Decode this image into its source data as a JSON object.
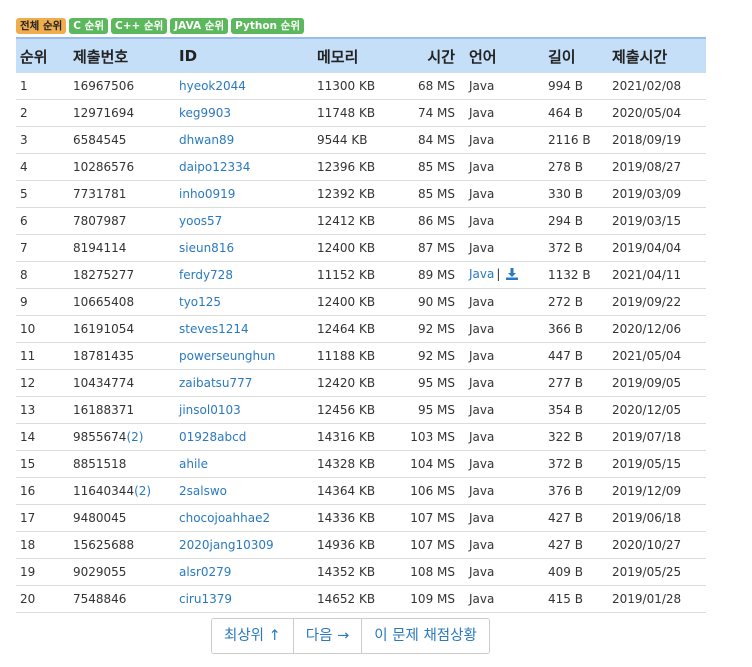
{
  "tabs": [
    "전체 순위",
    "C 순위",
    "C++ 순위",
    "JAVA 순위",
    "Python 순위"
  ],
  "columns": [
    "순위",
    "제출번호",
    "ID",
    "메모리",
    "시간",
    "언어",
    "길이",
    "제출시간"
  ],
  "rows": [
    {
      "rank": "1",
      "submission": "16967506",
      "sub_extra": "",
      "user": "hyeok2044",
      "memory": "11300 KB",
      "time": "68 MS",
      "lang": "Java",
      "length": "994 B",
      "date": "2021/02/08"
    },
    {
      "rank": "2",
      "submission": "12971694",
      "sub_extra": "",
      "user": "keg9903",
      "memory": "11748 KB",
      "time": "74 MS",
      "lang": "Java",
      "length": "464 B",
      "date": "2020/05/04"
    },
    {
      "rank": "3",
      "submission": "6584545",
      "sub_extra": "",
      "user": "dhwan89",
      "memory": "9544 KB",
      "time": "84 MS",
      "lang": "Java",
      "length": "2116 B",
      "date": "2018/09/19"
    },
    {
      "rank": "4",
      "submission": "10286576",
      "sub_extra": "",
      "user": "daipo12334",
      "memory": "12396 KB",
      "time": "85 MS",
      "lang": "Java",
      "length": "278 B",
      "date": "2019/08/27"
    },
    {
      "rank": "5",
      "submission": "7731781",
      "sub_extra": "",
      "user": "inho0919",
      "memory": "12392 KB",
      "time": "85 MS",
      "lang": "Java",
      "length": "330 B",
      "date": "2019/03/09"
    },
    {
      "rank": "6",
      "submission": "7807987",
      "sub_extra": "",
      "user": "yoos57",
      "memory": "12412 KB",
      "time": "86 MS",
      "lang": "Java",
      "length": "294 B",
      "date": "2019/03/15"
    },
    {
      "rank": "7",
      "submission": "8194114",
      "sub_extra": "",
      "user": "sieun816",
      "memory": "12400 KB",
      "time": "87 MS",
      "lang": "Java",
      "length": "372 B",
      "date": "2019/04/04"
    },
    {
      "rank": "8",
      "submission": "18275277",
      "sub_extra": "",
      "user": "ferdy728",
      "memory": "11152 KB",
      "time": "89 MS",
      "lang": "Java",
      "length": "1132 B",
      "date": "2021/04/11",
      "link": true
    },
    {
      "rank": "9",
      "submission": "10665408",
      "sub_extra": "",
      "user": "tyo125",
      "memory": "12400 KB",
      "time": "90 MS",
      "lang": "Java",
      "length": "272 B",
      "date": "2019/09/22"
    },
    {
      "rank": "10",
      "submission": "16191054",
      "sub_extra": "",
      "user": "steves1214",
      "memory": "12464 KB",
      "time": "92 MS",
      "lang": "Java",
      "length": "366 B",
      "date": "2020/12/06"
    },
    {
      "rank": "11",
      "submission": "18781435",
      "sub_extra": "",
      "user": "powerseunghun",
      "memory": "11188 KB",
      "time": "92 MS",
      "lang": "Java",
      "length": "447 B",
      "date": "2021/05/04"
    },
    {
      "rank": "12",
      "submission": "10434774",
      "sub_extra": "",
      "user": "zaibatsu777",
      "memory": "12420 KB",
      "time": "95 MS",
      "lang": "Java",
      "length": "277 B",
      "date": "2019/09/05"
    },
    {
      "rank": "13",
      "submission": "16188371",
      "sub_extra": "",
      "user": "jinsol0103",
      "memory": "12456 KB",
      "time": "95 MS",
      "lang": "Java",
      "length": "354 B",
      "date": "2020/12/05"
    },
    {
      "rank": "14",
      "submission": "9855674",
      "sub_extra": "(2)",
      "user": "01928abcd",
      "memory": "14316 KB",
      "time": "103 MS",
      "lang": "Java",
      "length": "322 B",
      "date": "2019/07/18"
    },
    {
      "rank": "15",
      "submission": "8851518",
      "sub_extra": "",
      "user": "ahile",
      "memory": "14328 KB",
      "time": "104 MS",
      "lang": "Java",
      "length": "372 B",
      "date": "2019/05/15"
    },
    {
      "rank": "16",
      "submission": "11640344",
      "sub_extra": "(2)",
      "user": "2salswo",
      "memory": "14364 KB",
      "time": "106 MS",
      "lang": "Java",
      "length": "376 B",
      "date": "2019/12/09"
    },
    {
      "rank": "17",
      "submission": "9480045",
      "sub_extra": "",
      "user": "chocojoahhae2",
      "memory": "14336 KB",
      "time": "107 MS",
      "lang": "Java",
      "length": "427 B",
      "date": "2019/06/18"
    },
    {
      "rank": "18",
      "submission": "15625688",
      "sub_extra": "",
      "user": "2020jang10309",
      "memory": "14936 KB",
      "time": "107 MS",
      "lang": "Java",
      "length": "427 B",
      "date": "2020/10/27"
    },
    {
      "rank": "19",
      "submission": "9029055",
      "sub_extra": "",
      "user": "alsr0279",
      "memory": "14352 KB",
      "time": "108 MS",
      "lang": "Java",
      "length": "409 B",
      "date": "2019/05/25"
    },
    {
      "rank": "20",
      "submission": "7548846",
      "sub_extra": "",
      "user": "ciru1379",
      "memory": "14652 KB",
      "time": "109 MS",
      "lang": "Java",
      "length": "415 B",
      "date": "2019/01/28"
    }
  ],
  "lang_separator": "|",
  "pager": {
    "top": "최상위 ↑",
    "next": "다음 →",
    "status": "이 문제 채점상황"
  },
  "colors": {
    "header_bg": "#c5dff8",
    "link": "#2a79c0",
    "tab_active": "#f0ad4e",
    "tab_green": "#5cb85c"
  }
}
